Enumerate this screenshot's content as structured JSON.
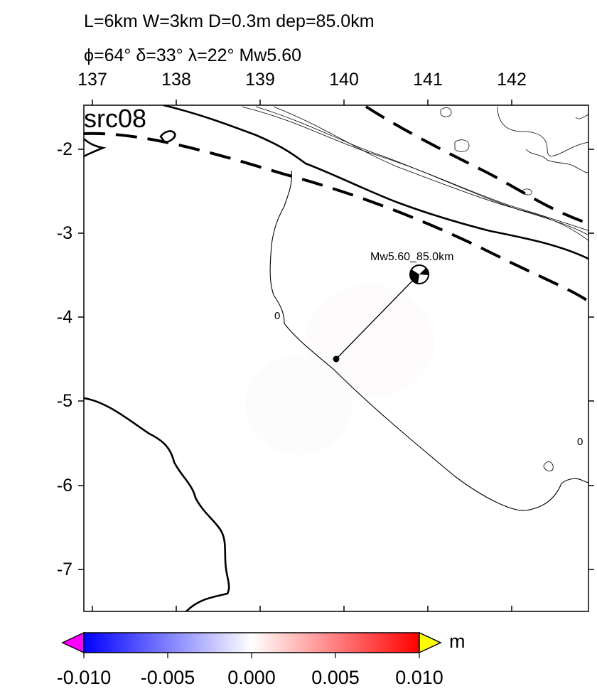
{
  "title": {
    "line1": "L=6km W=3km D=0.3m dep=85.0km",
    "line2": "ϕ=64° δ=33° λ=22° Mw5.60"
  },
  "panel_label": "src08",
  "axes": {
    "x_ticks": [
      "137",
      "138",
      "139",
      "140",
      "141",
      "142"
    ],
    "y_ticks": [
      "-2",
      "-3",
      "-4",
      "-5",
      "-6",
      "-7"
    ],
    "xlim": [
      136.9,
      142.95
    ],
    "ylim": [
      -7.5,
      -1.6
    ]
  },
  "annotations": {
    "event_label": "Mw5.60_85.0km",
    "contour_label_a": "0",
    "contour_label_b": "0"
  },
  "event": {
    "epicenter": {
      "lon": 140.95,
      "lat": -3.5
    },
    "centroid": {
      "lon": 139.9,
      "lat": -4.5
    }
  },
  "colorbar": {
    "unit": "m",
    "ticks": [
      "-0.010",
      "-0.005",
      "0.000",
      "0.005",
      "0.010"
    ],
    "range": [
      -0.01,
      0.01
    ],
    "colors": {
      "min": "#0000ff",
      "mid": "#ffffff",
      "max": "#ff0000",
      "under": "#ff00ff",
      "over": "#ffff00"
    }
  }
}
